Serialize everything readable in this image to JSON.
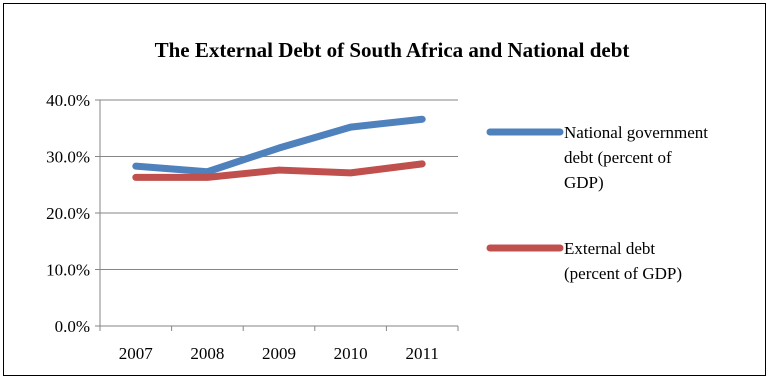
{
  "chart_data": {
    "type": "line",
    "title": "The External Debt of South Africa and National debt",
    "xlabel": "",
    "ylabel": "",
    "categories": [
      "2007",
      "2008",
      "2009",
      "2010",
      "2011"
    ],
    "ylim": [
      0,
      40
    ],
    "yticks": [
      0,
      10,
      20,
      30,
      40
    ],
    "ytick_labels": [
      "0.0%",
      "10.0%",
      "20.0%",
      "30.0%",
      "40.0%"
    ],
    "grid": "horizontal",
    "legend_position": "right",
    "series": [
      {
        "name": "National government debt (percent of GDP)",
        "legend_lines": [
          "National government",
          "debt (percent of",
          "GDP)"
        ],
        "color": "#4f81bd",
        "values": [
          28.3,
          27.3,
          31.5,
          35.2,
          36.6
        ]
      },
      {
        "name": "External debt (percent of GDP)",
        "legend_lines": [
          "External debt",
          "(percent of GDP)"
        ],
        "color": "#c0504d",
        "values": [
          26.3,
          26.3,
          27.6,
          27.1,
          28.7
        ]
      }
    ]
  }
}
